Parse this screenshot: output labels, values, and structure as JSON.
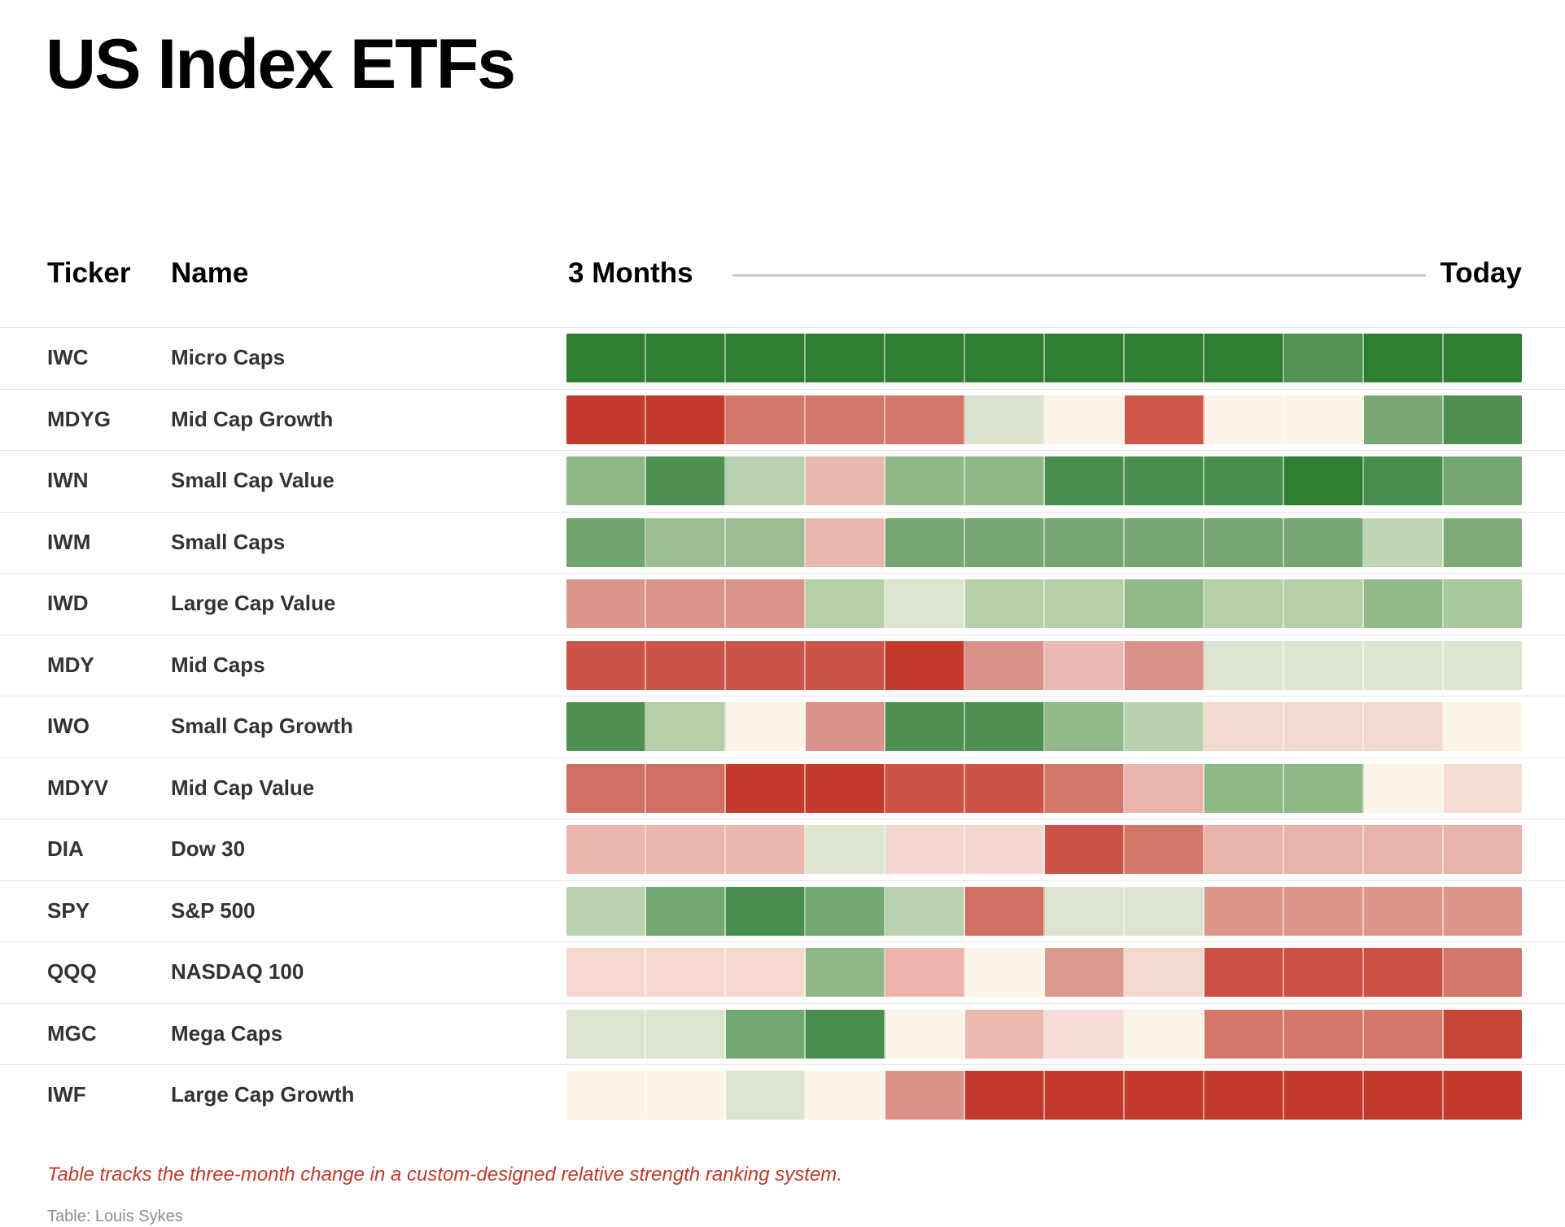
{
  "title": "US Index ETFs",
  "header": {
    "ticker_label": "Ticker",
    "name_label": "Name",
    "left_label": "3 Months",
    "right_label": "Today"
  },
  "chart_data": {
    "type": "heatmap",
    "title": "US Index ETFs",
    "description": "Weekly relative-strength heat strips per ETF over the last 3 months; 12 cells per row from '3 Months' (left) to 'Today' (right). Green = strong/improving relative strength, red = weak/deteriorating, cream = neutral.",
    "x_axis": {
      "left_tick": "3 Months",
      "right_tick": "Today",
      "n_periods": 12
    },
    "legend": "none (color-encoded only)",
    "palette_reference": {
      "dark_green": "#2e7d32",
      "green": "#4d9050",
      "medium_green": "#74a671",
      "light_medium_green": "#8fb787",
      "light_green": "#b5cfa9",
      "pale_green": "#dbe3cf",
      "neutral_cream": "#faf5e8",
      "pale_pink": "#f3d8d0",
      "pink": "#eab6ad",
      "salmon": "#d3776b",
      "medium_red": "#cc5347",
      "dark_red": "#c23a2b"
    },
    "rows": [
      {
        "ticker": "IWC",
        "name": "Micro Caps",
        "segments": [
          "#2e7d32",
          "#2e7d32",
          "#2e7d32",
          "#2e7d32",
          "#2e7d32",
          "#2e7d32",
          "#2e7d32",
          "#2e7d32",
          "#2e7d32",
          "#4f9252",
          "#2e7d32",
          "#2e7d32"
        ]
      },
      {
        "ticker": "MDYG",
        "name": "Mid Cap Growth",
        "segments": [
          "#c23a2b",
          "#c23a2b",
          "#d3776b",
          "#d3776b",
          "#d3776b",
          "#dbe2cf",
          "#faf5e8",
          "#cd5849",
          "#faf5e8",
          "#faf5e8",
          "#7aa874",
          "#4d9050"
        ]
      },
      {
        "ticker": "IWN",
        "name": "Small Cap Value",
        "segments": [
          "#8fb787",
          "#4d9050",
          "#b9d1ae",
          "#e8b7ae",
          "#8fb787",
          "#8fb787",
          "#4a8e4d",
          "#4a8e4d",
          "#4a8e4d",
          "#2e7d32",
          "#4a8e4d",
          "#74a671"
        ]
      },
      {
        "ticker": "IWM",
        "name": "Small Caps",
        "segments": [
          "#6fa46e",
          "#9cbd93",
          "#9cbd93",
          "#e8b7ae",
          "#74a671",
          "#74a671",
          "#74a671",
          "#74a671",
          "#74a671",
          "#74a671",
          "#bed4b2",
          "#7eac79"
        ]
      },
      {
        "ticker": "IWD",
        "name": "Large Cap Value",
        "segments": [
          "#d9958b",
          "#d9958b",
          "#d9958b",
          "#b5cfa9",
          "#dde5d1",
          "#b5cfa9",
          "#b5cfa9",
          "#92b98a",
          "#b5cfa9",
          "#b5cfa9",
          "#92b98a",
          "#a8c89d"
        ]
      },
      {
        "ticker": "MDY",
        "name": "Mid Caps",
        "segments": [
          "#cc5347",
          "#cc5347",
          "#cc5347",
          "#cc5347",
          "#c23a2b",
          "#d9918a",
          "#e9b8b0",
          "#d9918a",
          "#dce5d0",
          "#dce5d0",
          "#dce5d0",
          "#dce5d0"
        ]
      },
      {
        "ticker": "IWO",
        "name": "Small Cap Growth",
        "segments": [
          "#4d9050",
          "#b5cfa9",
          "#faf5e8",
          "#d9928a",
          "#4d9050",
          "#4d9050",
          "#92b98a",
          "#b8d1ad",
          "#f3d8d0",
          "#f3d8d0",
          "#f3d8d0",
          "#faf5e8"
        ]
      },
      {
        "ticker": "MDYV",
        "name": "Mid Cap Value",
        "segments": [
          "#d06f63",
          "#d06f63",
          "#c23a2b",
          "#c23a2b",
          "#cc5347",
          "#cc5347",
          "#d3776b",
          "#eab5ac",
          "#90b788",
          "#90b788",
          "#faf5e8",
          "#f5dcd4"
        ]
      },
      {
        "ticker": "DIA",
        "name": "Dow 30",
        "segments": [
          "#eab6ad",
          "#eab6ad",
          "#eab6ad",
          "#dbe5d0",
          "#f3d6ce",
          "#f3d6ce",
          "#cc5347",
          "#d3776b",
          "#e9b2a9",
          "#e9b2a9",
          "#e9b2a9",
          "#e9b2a9"
        ]
      },
      {
        "ticker": "SPY",
        "name": "S&P 500",
        "segments": [
          "#b8d2ad",
          "#74a871",
          "#4a8e4d",
          "#74a871",
          "#b8d2ad",
          "#d26f63",
          "#dbe4cf",
          "#dbe4cf",
          "#dd948b",
          "#dd948b",
          "#dd948b",
          "#dd948b"
        ]
      },
      {
        "ticker": "QQQ",
        "name": "NASDAQ 100",
        "segments": [
          "#f5d9d1",
          "#f5d9d1",
          "#f5d9d1",
          "#8fb787",
          "#ecb4ab",
          "#faf5e8",
          "#db9a90",
          "#f3d8d0",
          "#cc5145",
          "#cc5145",
          "#cc5145",
          "#d3776b"
        ]
      },
      {
        "ticker": "MGC",
        "name": "Mega Caps",
        "segments": [
          "#dbe4ce",
          "#dbe4ce",
          "#74a871",
          "#4a8e4d",
          "#faf5e8",
          "#ecb8b0",
          "#f5dcd6",
          "#faf5e8",
          "#d3776b",
          "#d3776b",
          "#d3776b",
          "#c64537"
        ]
      },
      {
        "ticker": "IWF",
        "name": "Large Cap Growth",
        "segments": [
          "#faf5e8",
          "#faf5e8",
          "#dbe4ce",
          "#faf5e8",
          "#dc9288",
          "#c23a2b",
          "#c23a2b",
          "#c23a2b",
          "#c23a2b",
          "#c23a2b",
          "#c23a2b",
          "#c23a2b"
        ]
      }
    ]
  },
  "footnote": {
    "text": "Table tracks the three-month change in a custom-designed relative strength ranking system.",
    "color": "#c0392b"
  },
  "credit": {
    "text": "Table: Louis Sykes",
    "color": "#8e8e8e"
  },
  "colors": {
    "header_rule": "#c8c8c8",
    "row_border": "#e4e4e4",
    "text_primary": "#000000",
    "text_row": "#333333"
  }
}
